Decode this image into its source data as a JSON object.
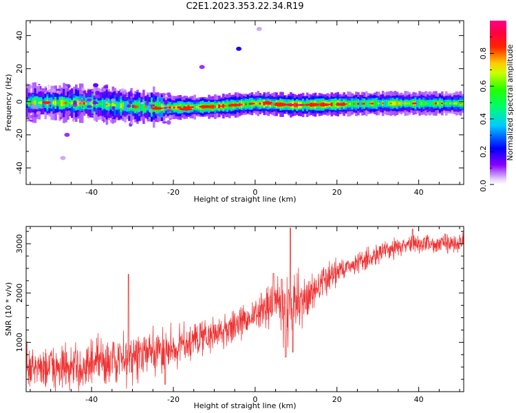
{
  "chart_data": [
    {
      "type": "heatmap",
      "title": "C2E1.2023.353.22.34.R19",
      "xlabel": "Height of straight line (km)",
      "ylabel": "Frequency (Hz)",
      "xlim": [
        -56,
        51
      ],
      "ylim": [
        -50,
        49
      ],
      "xticks": [
        -40,
        -20,
        0,
        20,
        40
      ],
      "yticks": [
        -40,
        -20,
        0,
        20,
        40
      ],
      "colorbar": {
        "label": "Normalized spectral amplitude",
        "range": [
          0,
          1
        ],
        "ticks": [
          "0.0",
          "0.2",
          "0.4",
          "0.6",
          "0.8"
        ],
        "tick_values": [
          0.0,
          0.2,
          0.4,
          0.6,
          0.8
        ],
        "colormap": "rainbow (white-purple-blue-cyan-green-yellow-red-magenta)"
      },
      "band_center_hz": [
        [
          -56,
          -0.5
        ],
        [
          -40,
          -1
        ],
        [
          -30,
          -3
        ],
        [
          -20,
          -3.5
        ],
        [
          -10,
          -3
        ],
        [
          0,
          -1
        ],
        [
          10,
          -2
        ],
        [
          20,
          -1.5
        ],
        [
          30,
          -1
        ],
        [
          40,
          -1
        ],
        [
          51,
          -1
        ]
      ],
      "band_peak_amplitude": [
        [
          -56,
          0.6
        ],
        [
          -50,
          0.7
        ],
        [
          -45,
          0.75
        ],
        [
          -35,
          0.7
        ],
        [
          -25,
          0.8
        ],
        [
          -15,
          0.85
        ],
        [
          -5,
          0.9
        ],
        [
          5,
          0.95
        ],
        [
          15,
          0.95
        ],
        [
          25,
          0.8
        ],
        [
          35,
          0.75
        ],
        [
          45,
          0.7
        ],
        [
          51,
          0.7
        ]
      ],
      "scattered_features": [
        {
          "x": -4,
          "y": 32,
          "amplitude": 0.2
        },
        {
          "x": -13,
          "y": 21,
          "amplitude": 0.1
        },
        {
          "x": 1,
          "y": 44,
          "amplitude": 0.05
        },
        {
          "x": -47,
          "y": -34,
          "amplitude": 0.05
        },
        {
          "x": -46,
          "y": -20,
          "amplitude": 0.1
        },
        {
          "x": -39,
          "y": 10,
          "amplitude": 0.15
        }
      ]
    },
    {
      "type": "line",
      "xlabel": "Height of straight line (km)",
      "ylabel": "SNR (10 * v/v)",
      "xlim": [
        -56,
        51
      ],
      "ylim": [
        0,
        3350
      ],
      "xticks": [
        -40,
        -20,
        0,
        20,
        40
      ],
      "yticks": [
        1000,
        2000,
        3000
      ],
      "color": "#ee3333",
      "trend": [
        [
          -56,
          500
        ],
        [
          -50,
          500
        ],
        [
          -45,
          450
        ],
        [
          -40,
          550
        ],
        [
          -35,
          600
        ],
        [
          -30,
          700
        ],
        [
          -25,
          750
        ],
        [
          -20,
          900
        ],
        [
          -15,
          1050
        ],
        [
          -10,
          1150
        ],
        [
          -5,
          1350
        ],
        [
          0,
          1550
        ],
        [
          3,
          1700
        ],
        [
          5,
          1900
        ],
        [
          7,
          1600
        ],
        [
          9,
          1700
        ],
        [
          12,
          1850
        ],
        [
          15,
          2100
        ],
        [
          18,
          2300
        ],
        [
          20,
          2450
        ],
        [
          23,
          2550
        ],
        [
          26,
          2650
        ],
        [
          30,
          2800
        ],
        [
          35,
          2950
        ],
        [
          40,
          3000
        ],
        [
          45,
          3000
        ],
        [
          51,
          3050
        ]
      ],
      "noise_amplitude": [
        [
          -56,
          300
        ],
        [
          -30,
          350
        ],
        [
          -20,
          300
        ],
        [
          0,
          200
        ],
        [
          5,
          450
        ],
        [
          10,
          400
        ],
        [
          15,
          200
        ],
        [
          25,
          150
        ],
        [
          51,
          120
        ]
      ],
      "spikes": [
        {
          "x": -31,
          "y": 2380
        },
        {
          "x": 4.5,
          "y": 2400
        },
        {
          "x": 6.5,
          "y": 2280
        },
        {
          "x": 8.6,
          "y": 3320
        },
        {
          "x": 9.2,
          "y": 800
        },
        {
          "x": 7.5,
          "y": 700
        },
        {
          "x": 38.5,
          "y": 3300
        },
        {
          "x": -22,
          "y": 150
        }
      ]
    }
  ]
}
